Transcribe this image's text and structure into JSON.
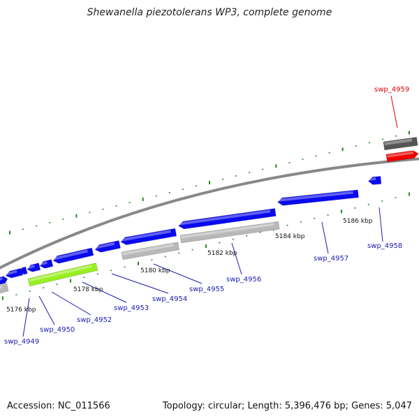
{
  "title": "Shewanella piezotolerans WP3, complete genome",
  "footer": {
    "accession": "Accession: NC_011566",
    "stats": "Topology: circular; Length: 5,396,476 bp; Genes: 5,047"
  },
  "colors": {
    "forward_gene": "#0a0aee",
    "reverse_gene": "#b8b8b8",
    "highlight_gene": "#99ee22",
    "selected_gene": "#ee0000",
    "other_feature": "#555555",
    "backbone": "#888888",
    "tick": "#228822",
    "label": "#1a1ab0",
    "selected_label": "#dd0000"
  },
  "scale_labels": [
    "5176 kbp",
    "5178 kbp",
    "5180 kbp",
    "5182 kbp",
    "5184 kbp",
    "5186 kbp"
  ],
  "gene_labels": [
    {
      "text": "swp_4949",
      "selected": false
    },
    {
      "text": "swp_4950",
      "selected": false
    },
    {
      "text": "swp_4952",
      "selected": false
    },
    {
      "text": "swp_4953",
      "selected": false
    },
    {
      "text": "swp_4954",
      "selected": false
    },
    {
      "text": "swp_4955",
      "selected": false
    },
    {
      "text": "swp_4956",
      "selected": false
    },
    {
      "text": "swp_4957",
      "selected": false
    },
    {
      "text": "swp_4958",
      "selected": false
    },
    {
      "text": "swp_4959",
      "selected": true
    }
  ]
}
